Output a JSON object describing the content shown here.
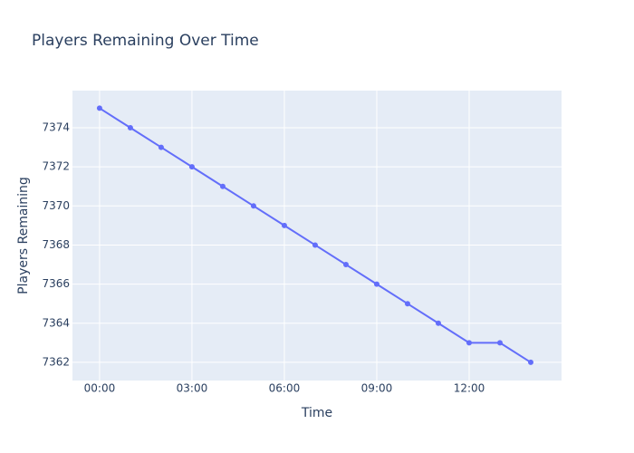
{
  "chart_data": {
    "type": "line",
    "title": "Players Remaining Over Time",
    "x_label": "Time",
    "y_label": "Players Remaining",
    "x": [
      0,
      1,
      2,
      3,
      4,
      5,
      6,
      7,
      8,
      9,
      10,
      11,
      12,
      13,
      14
    ],
    "series": [
      {
        "name": "Players Remaining",
        "color": "#636efa",
        "values": [
          7375,
          7374,
          7373,
          7372,
          7371,
          7370,
          7369,
          7368,
          7367,
          7366,
          7365,
          7364,
          7363,
          7363,
          7362
        ]
      }
    ],
    "xlim": [
      -0.88,
      15
    ],
    "ylim": [
      7361.07,
      7375.9
    ],
    "xticks": [
      {
        "value": 0,
        "label": "00:00"
      },
      {
        "value": 3,
        "label": "03:00"
      },
      {
        "value": 6,
        "label": "06:00"
      },
      {
        "value": 9,
        "label": "09:00"
      },
      {
        "value": 12,
        "label": "12:00"
      }
    ],
    "yticks": [
      7362,
      7364,
      7366,
      7368,
      7370,
      7372,
      7374
    ],
    "grid": true,
    "background": "#e5ecf6"
  }
}
